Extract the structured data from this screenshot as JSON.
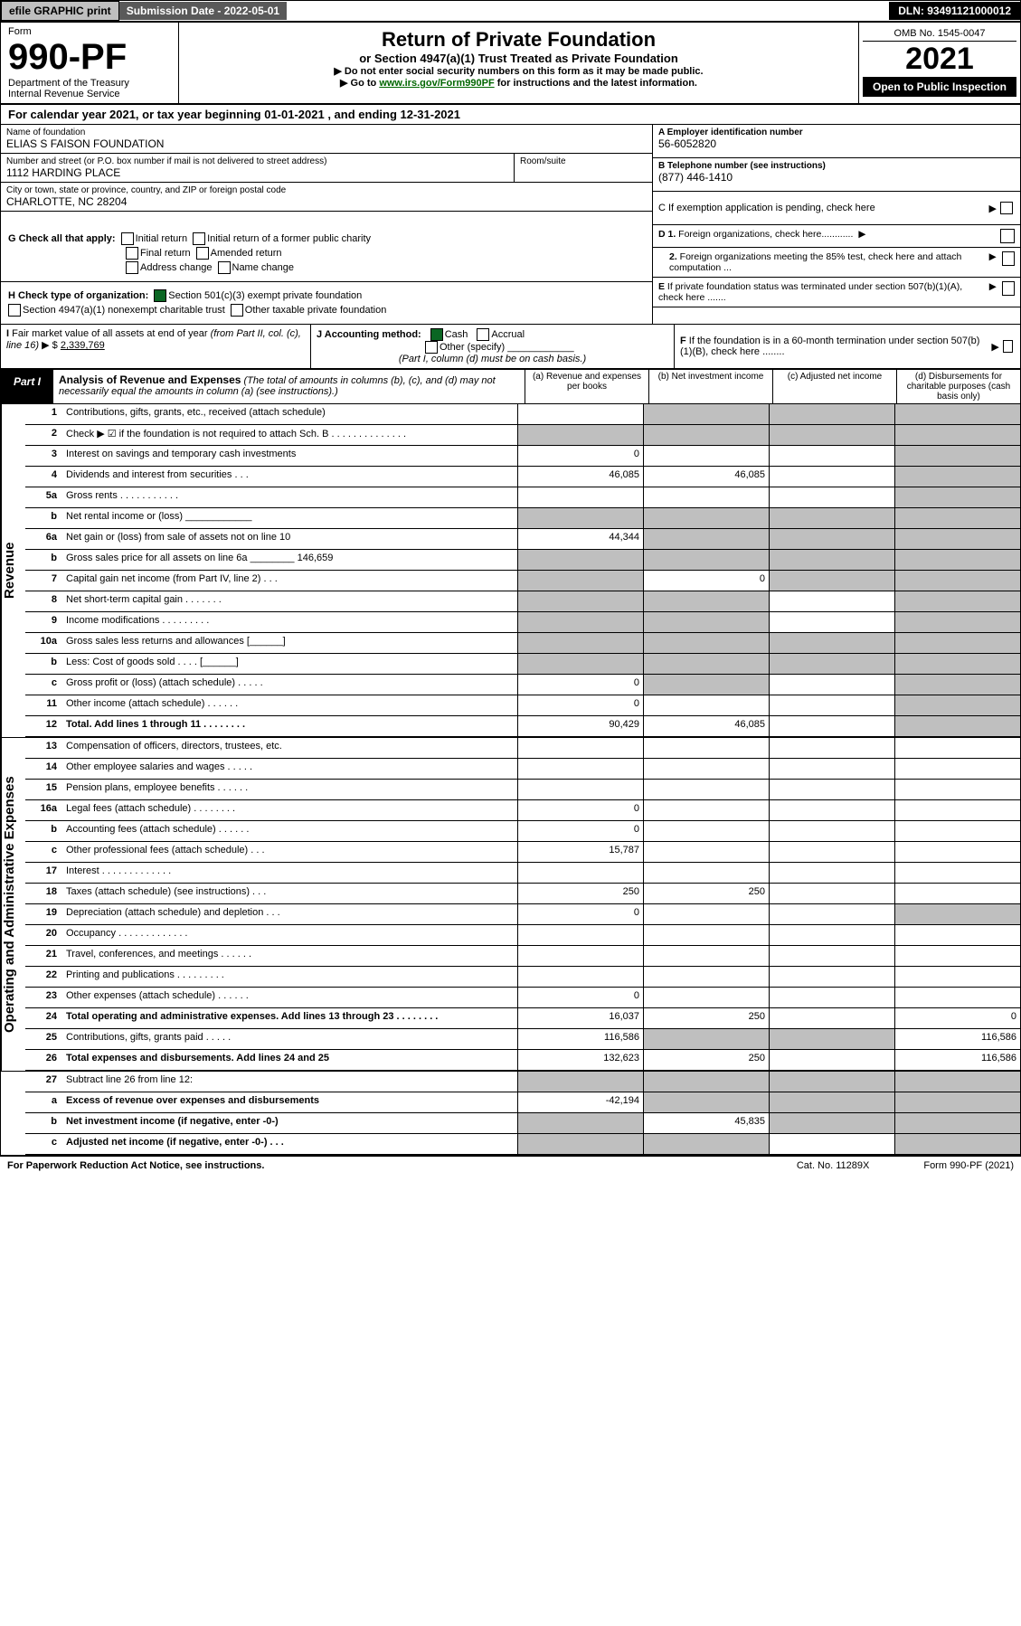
{
  "topbar": {
    "efile": "efile GRAPHIC print",
    "subdate_label": "Submission Date - 2022-05-01",
    "dln": "DLN: 93491121000012"
  },
  "header": {
    "form_label": "Form",
    "form_number": "990-PF",
    "dept": "Department of the Treasury",
    "irs": "Internal Revenue Service",
    "title": "Return of Private Foundation",
    "subtitle": "or Section 4947(a)(1) Trust Treated as Private Foundation",
    "instr1": "▶ Do not enter social security numbers on this form as it may be made public.",
    "instr2_pre": "▶ Go to ",
    "instr2_link": "www.irs.gov/Form990PF",
    "instr2_post": " for instructions and the latest information.",
    "omb": "OMB No. 1545-0047",
    "year": "2021",
    "open_public": "Open to Public Inspection"
  },
  "cal_year": "For calendar year 2021, or tax year beginning 01-01-2021             , and ending 12-31-2021",
  "name": {
    "label": "Name of foundation",
    "value": "ELIAS S FAISON FOUNDATION"
  },
  "ein": {
    "label": "A Employer identification number",
    "value": "56-6052820"
  },
  "addr": {
    "label": "Number and street (or P.O. box number if mail is not delivered to street address)",
    "value": "1112 HARDING PLACE",
    "room_label": "Room/suite"
  },
  "phone": {
    "label": "B Telephone number (see instructions)",
    "value": "(877) 446-1410"
  },
  "city": {
    "label": "City or town, state or province, country, and ZIP or foreign postal code",
    "value": "CHARLOTTE, NC  28204"
  },
  "boxC": "C If exemption application is pending, check here",
  "boxG": {
    "label": "G Check all that apply:",
    "opts": [
      "Initial return",
      "Final return",
      "Address change",
      "Initial return of a former public charity",
      "Amended return",
      "Name change"
    ]
  },
  "boxD": {
    "d1": "D 1. Foreign organizations, check here............",
    "d2": "2. Foreign organizations meeting the 85% test, check here and attach computation ..."
  },
  "boxH": {
    "label": "H Check type of organization:",
    "opts": [
      "Section 501(c)(3) exempt private foundation",
      "Section 4947(a)(1) nonexempt charitable trust",
      "Other taxable private foundation"
    ]
  },
  "boxE": "E If private foundation status was terminated under section 507(b)(1)(A), check here .......",
  "boxI": {
    "label": "I Fair market value of all assets at end of year (from Part II, col. (c), line 16) ▶ $",
    "value": "2,339,769"
  },
  "boxJ": {
    "label": "J Accounting method:",
    "opts": [
      "Cash",
      "Accrual",
      "Other (specify)"
    ],
    "note": "(Part I, column (d) must be on cash basis.)"
  },
  "boxF": "F If the foundation is in a 60-month termination under section 507(b)(1)(B), check here ........",
  "part1": {
    "tab": "Part I",
    "title": "Analysis of Revenue and Expenses",
    "title_note": " (The total of amounts in columns (b), (c), and (d) may not necessarily equal the amounts in column (a) (see instructions).)",
    "cols": [
      "(a)  Revenue and expenses per books",
      "(b)  Net investment income",
      "(c)  Adjusted net income",
      "(d)  Disbursements for charitable purposes (cash basis only)"
    ]
  },
  "sections": {
    "revenue": "Revenue",
    "expenses": "Operating and Administrative Expenses"
  },
  "rows": [
    {
      "n": "1",
      "d": "",
      "a": "",
      "b": "",
      "c": "",
      "shade": "bcd"
    },
    {
      "n": "2",
      "d": "",
      "a": "",
      "b": "",
      "c": "",
      "shade": "abcd"
    },
    {
      "n": "3",
      "d": "",
      "a": "0",
      "b": "",
      "c": "",
      "shade": "d"
    },
    {
      "n": "4",
      "d": "",
      "a": "46,085",
      "b": "46,085",
      "c": "",
      "shade": "d"
    },
    {
      "n": "5a",
      "d": "",
      "a": "",
      "b": "",
      "c": "",
      "shade": "d"
    },
    {
      "n": "b",
      "d": "",
      "a": "",
      "b": "",
      "c": "",
      "shade": "abcd"
    },
    {
      "n": "6a",
      "d": "",
      "a": "44,344",
      "b": "",
      "c": "",
      "shade": "bcd"
    },
    {
      "n": "b",
      "d": "",
      "a": "",
      "b": "",
      "c": "",
      "shade": "abcd"
    },
    {
      "n": "7",
      "d": "",
      "a": "",
      "b": "0",
      "c": "",
      "shade": "acd"
    },
    {
      "n": "8",
      "d": "",
      "a": "",
      "b": "",
      "c": "",
      "shade": "abd"
    },
    {
      "n": "9",
      "d": "",
      "a": "",
      "b": "",
      "c": "",
      "shade": "abd"
    },
    {
      "n": "10a",
      "d": "",
      "a": "",
      "b": "",
      "c": "",
      "shade": "abcd"
    },
    {
      "n": "b",
      "d": "",
      "a": "",
      "b": "",
      "c": "",
      "shade": "abcd"
    },
    {
      "n": "c",
      "d": "",
      "a": "0",
      "b": "",
      "c": "",
      "shade": "bd"
    },
    {
      "n": "11",
      "d": "",
      "a": "0",
      "b": "",
      "c": "",
      "shade": "d"
    },
    {
      "n": "12",
      "d": "",
      "bold": true,
      "a": "90,429",
      "b": "46,085",
      "c": "",
      "shade": "d"
    }
  ],
  "exprows": [
    {
      "n": "13",
      "d": "",
      "a": "",
      "b": "",
      "c": ""
    },
    {
      "n": "14",
      "d": "",
      "a": "",
      "b": "",
      "c": ""
    },
    {
      "n": "15",
      "d": "",
      "a": "",
      "b": "",
      "c": ""
    },
    {
      "n": "16a",
      "d": "",
      "a": "0",
      "b": "",
      "c": ""
    },
    {
      "n": "b",
      "d": "",
      "a": "0",
      "b": "",
      "c": ""
    },
    {
      "n": "c",
      "d": "",
      "a": "15,787",
      "b": "",
      "c": ""
    },
    {
      "n": "17",
      "d": "",
      "a": "",
      "b": "",
      "c": ""
    },
    {
      "n": "18",
      "d": "",
      "a": "250",
      "b": "250",
      "c": ""
    },
    {
      "n": "19",
      "d": "",
      "a": "0",
      "b": "",
      "c": "",
      "shade": "d"
    },
    {
      "n": "20",
      "d": "",
      "a": "",
      "b": "",
      "c": ""
    },
    {
      "n": "21",
      "d": "",
      "a": "",
      "b": "",
      "c": ""
    },
    {
      "n": "22",
      "d": "",
      "a": "",
      "b": "",
      "c": ""
    },
    {
      "n": "23",
      "d": "",
      "a": "0",
      "b": "",
      "c": ""
    },
    {
      "n": "24",
      "d": "0",
      "bold": true,
      "a": "16,037",
      "b": "250",
      "c": ""
    },
    {
      "n": "25",
      "d": "116,586",
      "a": "116,586",
      "b": "",
      "c": "",
      "shade": "bc"
    },
    {
      "n": "26",
      "d": "116,586",
      "bold": true,
      "a": "132,623",
      "b": "250",
      "c": ""
    }
  ],
  "row27": [
    {
      "n": "27",
      "d": "",
      "a": "",
      "b": "",
      "c": "",
      "shade": "abcd"
    },
    {
      "n": "a",
      "d": "",
      "bold": true,
      "a": "-42,194",
      "b": "",
      "c": "",
      "shade": "bcd"
    },
    {
      "n": "b",
      "d": "",
      "bold": true,
      "a": "",
      "b": "45,835",
      "c": "",
      "shade": "acd"
    },
    {
      "n": "c",
      "d": "",
      "bold": true,
      "a": "",
      "b": "",
      "c": "",
      "shade": "abd"
    }
  ],
  "footer": {
    "left": "For Paperwork Reduction Act Notice, see instructions.",
    "mid": "Cat. No. 11289X",
    "right": "Form 990-PF (2021)"
  }
}
